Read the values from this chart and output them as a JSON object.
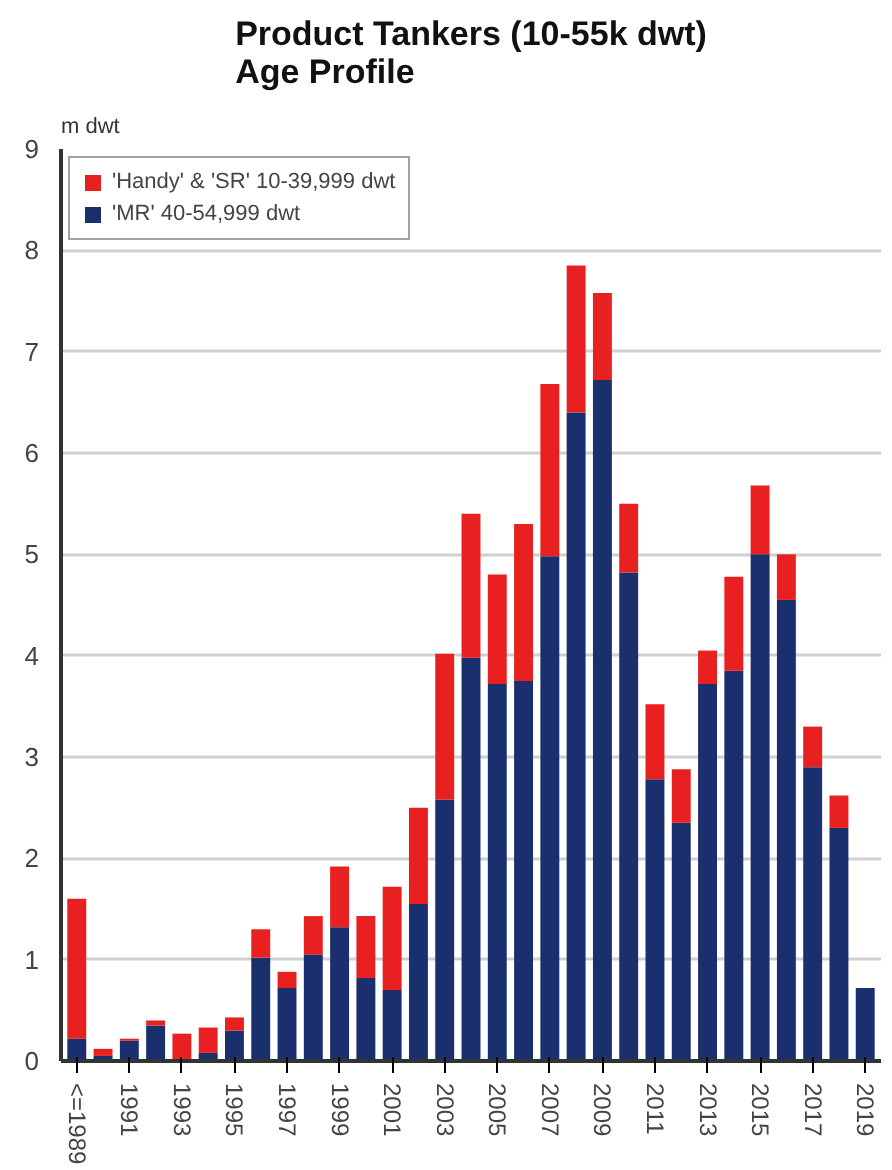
{
  "chart_data": {
    "type": "bar",
    "title": "Product Tankers (10-55k dwt) Age Profile",
    "ylabel": "m dwt",
    "categories": [
      "<=1989",
      null,
      "1991",
      null,
      "1993",
      null,
      "1995",
      null,
      "1997",
      null,
      "1999",
      null,
      "2001",
      null,
      "2003",
      null,
      "2005",
      null,
      "2007",
      null,
      "2009",
      null,
      "2011",
      null,
      "2013",
      null,
      "2015",
      null,
      "2017",
      null,
      "2019"
    ],
    "stacked": true,
    "series": [
      {
        "name": "'MR' 40-54,999 dwt",
        "color": "#1a2f6e",
        "values": [
          0.22,
          0.05,
          0.2,
          0.35,
          0.02,
          0.08,
          0.3,
          1.02,
          0.72,
          1.05,
          1.32,
          0.82,
          0.7,
          1.55,
          2.58,
          3.98,
          3.72,
          3.75,
          4.98,
          6.4,
          6.72,
          4.82,
          2.78,
          2.35,
          3.72,
          3.85,
          5.0,
          4.55,
          2.9,
          2.3,
          0.72
        ]
      },
      {
        "name": "'Handy' & 'SR' 10-39,999 dwt",
        "color": "#e8201f",
        "values": [
          1.38,
          0.07,
          0.02,
          0.05,
          0.25,
          0.25,
          0.13,
          0.28,
          0.16,
          0.38,
          0.6,
          0.61,
          1.02,
          0.95,
          1.44,
          1.42,
          1.08,
          1.55,
          1.7,
          1.45,
          0.86,
          0.68,
          0.74,
          0.53,
          0.33,
          0.93,
          0.68,
          0.45,
          0.4,
          0.32,
          0
        ]
      }
    ],
    "ylim": [
      0,
      9
    ],
    "yticks": [
      0,
      1,
      2,
      3,
      4,
      5,
      6,
      7,
      8,
      9
    ],
    "grid": "y",
    "legend": "top left"
  }
}
